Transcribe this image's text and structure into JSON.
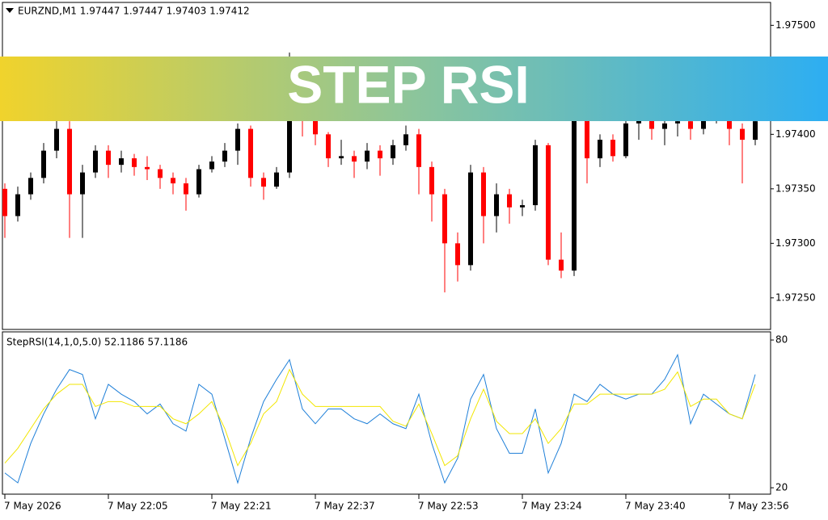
{
  "banner": "STEP RSI",
  "chart_data": [
    {
      "type": "candlestick",
      "title": "EURZND,M1  1.97447 1.97447 1.97403 1.97412",
      "up_color": "#000000",
      "down_color": "#ff0000",
      "categories": [
        "7 May 2026",
        null,
        null,
        null,
        null,
        null,
        null,
        null,
        "7 May 22:05",
        null,
        null,
        null,
        null,
        null,
        null,
        null,
        "7 May 22:21",
        null,
        null,
        null,
        null,
        null,
        null,
        null,
        "7 May 22:37",
        null,
        null,
        null,
        null,
        null,
        null,
        null,
        "7 May 22:53",
        null,
        null,
        null,
        null,
        null,
        null,
        null,
        "7 May 23:24",
        null,
        null,
        null,
        null,
        null,
        null,
        null,
        "7 May 23:40",
        null,
        null,
        null,
        null,
        null,
        null,
        null,
        "7 May 23:56",
        null,
        null
      ],
      "open": [
        1.9735,
        1.97325,
        1.97345,
        1.9736,
        1.97385,
        1.97405,
        1.97345,
        1.97365,
        1.97385,
        1.97372,
        1.97378,
        1.9737,
        1.97368,
        1.9736,
        1.97355,
        1.97345,
        1.97368,
        1.97375,
        1.97385,
        1.97405,
        1.9736,
        1.97352,
        1.97365,
        1.9744,
        1.97415,
        1.974,
        1.97378,
        1.9738,
        1.97375,
        1.97385,
        1.97378,
        1.9739,
        1.974,
        1.9737,
        1.97345,
        1.973,
        1.9728,
        1.97365,
        1.97325,
        1.97345,
        1.97333,
        1.97335,
        1.9739,
        1.97285,
        1.97275,
        1.9742,
        1.97378,
        1.97395,
        1.9738,
        1.9741,
        1.97415,
        1.97405,
        1.9741,
        1.97412,
        1.97405,
        1.97418,
        1.9742,
        1.97405,
        1.97395
      ],
      "high": [
        1.97355,
        1.97352,
        1.97365,
        1.97392,
        1.9742,
        1.97412,
        1.97372,
        1.9739,
        1.9739,
        1.97385,
        1.97382,
        1.9738,
        1.97372,
        1.97365,
        1.9736,
        1.97372,
        1.9738,
        1.97392,
        1.9741,
        1.97408,
        1.97365,
        1.9737,
        1.97475,
        1.97445,
        1.9742,
        1.97402,
        1.97395,
        1.97385,
        1.97392,
        1.9739,
        1.97395,
        1.97408,
        1.97405,
        1.97375,
        1.9735,
        1.9731,
        1.97372,
        1.9737,
        1.97355,
        1.9735,
        1.9734,
        1.97395,
        1.97392,
        1.9731,
        1.9744,
        1.97425,
        1.974,
        1.974,
        1.97418,
        1.97425,
        1.9742,
        1.97415,
        1.9742,
        1.97418,
        1.97425,
        1.9743,
        1.97428,
        1.9741,
        1.97418
      ],
      "low": [
        1.97305,
        1.9732,
        1.9734,
        1.97355,
        1.97378,
        1.97305,
        1.97305,
        1.9736,
        1.9736,
        1.97365,
        1.97362,
        1.97358,
        1.9735,
        1.97345,
        1.9733,
        1.97342,
        1.97365,
        1.9737,
        1.97372,
        1.97352,
        1.9734,
        1.9735,
        1.9736,
        1.97398,
        1.9739,
        1.9737,
        1.97372,
        1.9736,
        1.97368,
        1.97362,
        1.97372,
        1.97385,
        1.97345,
        1.9732,
        1.97255,
        1.97265,
        1.97275,
        1.973,
        1.9731,
        1.97318,
        1.97325,
        1.9733,
        1.9728,
        1.97268,
        1.9727,
        1.97355,
        1.9737,
        1.97375,
        1.97378,
        1.97395,
        1.97395,
        1.9739,
        1.97398,
        1.97395,
        1.974,
        1.9741,
        1.9739,
        1.97355,
        1.9739
      ],
      "close": [
        1.97325,
        1.97345,
        1.9736,
        1.97385,
        1.97405,
        1.97345,
        1.97365,
        1.97385,
        1.97372,
        1.97378,
        1.9737,
        1.97368,
        1.9736,
        1.97355,
        1.97345,
        1.97368,
        1.97375,
        1.97385,
        1.97405,
        1.9736,
        1.97352,
        1.97365,
        1.9744,
        1.97415,
        1.974,
        1.97378,
        1.9738,
        1.97375,
        1.97385,
        1.97378,
        1.9739,
        1.974,
        1.9737,
        1.97345,
        1.973,
        1.9728,
        1.97365,
        1.97325,
        1.97345,
        1.97333,
        1.97335,
        1.9739,
        1.97285,
        1.97275,
        1.9742,
        1.97378,
        1.97395,
        1.9738,
        1.9741,
        1.97415,
        1.97405,
        1.9741,
        1.97412,
        1.97405,
        1.97418,
        1.9742,
        1.97405,
        1.97395,
        1.97412
      ],
      "ylim": [
        1.97221,
        1.97521
      ],
      "yticks": [
        {
          "value": 1.975,
          "label": "1.97500"
        },
        {
          "value": 1.974,
          "label": "1.97400"
        },
        {
          "value": 1.9735,
          "label": "1.97350"
        },
        {
          "value": 1.973,
          "label": "1.97300"
        },
        {
          "value": 1.9725,
          "label": "1.97250"
        }
      ]
    },
    {
      "type": "line",
      "title": "StepRSI(14,1,0,5.0) 52.1186 57.1186",
      "ylim": [
        17.4,
        83.3
      ],
      "yticks": [
        20,
        80
      ],
      "series": [
        {
          "color": "#1e7fd8",
          "values": [
            26,
            22,
            38,
            50,
            60,
            68,
            66,
            48,
            62,
            58,
            55,
            50,
            54,
            46,
            43,
            62,
            58,
            40,
            22,
            40,
            55,
            64,
            72,
            52,
            46,
            52,
            52,
            48,
            46,
            50,
            46,
            44,
            58,
            38,
            22,
            32,
            56,
            66,
            44,
            34,
            34,
            52,
            26,
            38,
            58,
            55,
            62,
            58,
            56,
            58,
            58,
            64,
            74,
            46,
            58,
            54,
            50,
            48,
            66
          ]
        },
        {
          "color": "#f2e600",
          "values": [
            30,
            36,
            44,
            52,
            58,
            62,
            62,
            53,
            55,
            55,
            53,
            53,
            53,
            48,
            46,
            50,
            55,
            44,
            29,
            38,
            50,
            55,
            68,
            58,
            53,
            53,
            53,
            53,
            53,
            53,
            47,
            45,
            54,
            42,
            29,
            33,
            48,
            60,
            47,
            42,
            42,
            48,
            38,
            44,
            54,
            54,
            58,
            58,
            58,
            58,
            58,
            60,
            67,
            53,
            56,
            56,
            50,
            48,
            62
          ]
        }
      ]
    }
  ]
}
